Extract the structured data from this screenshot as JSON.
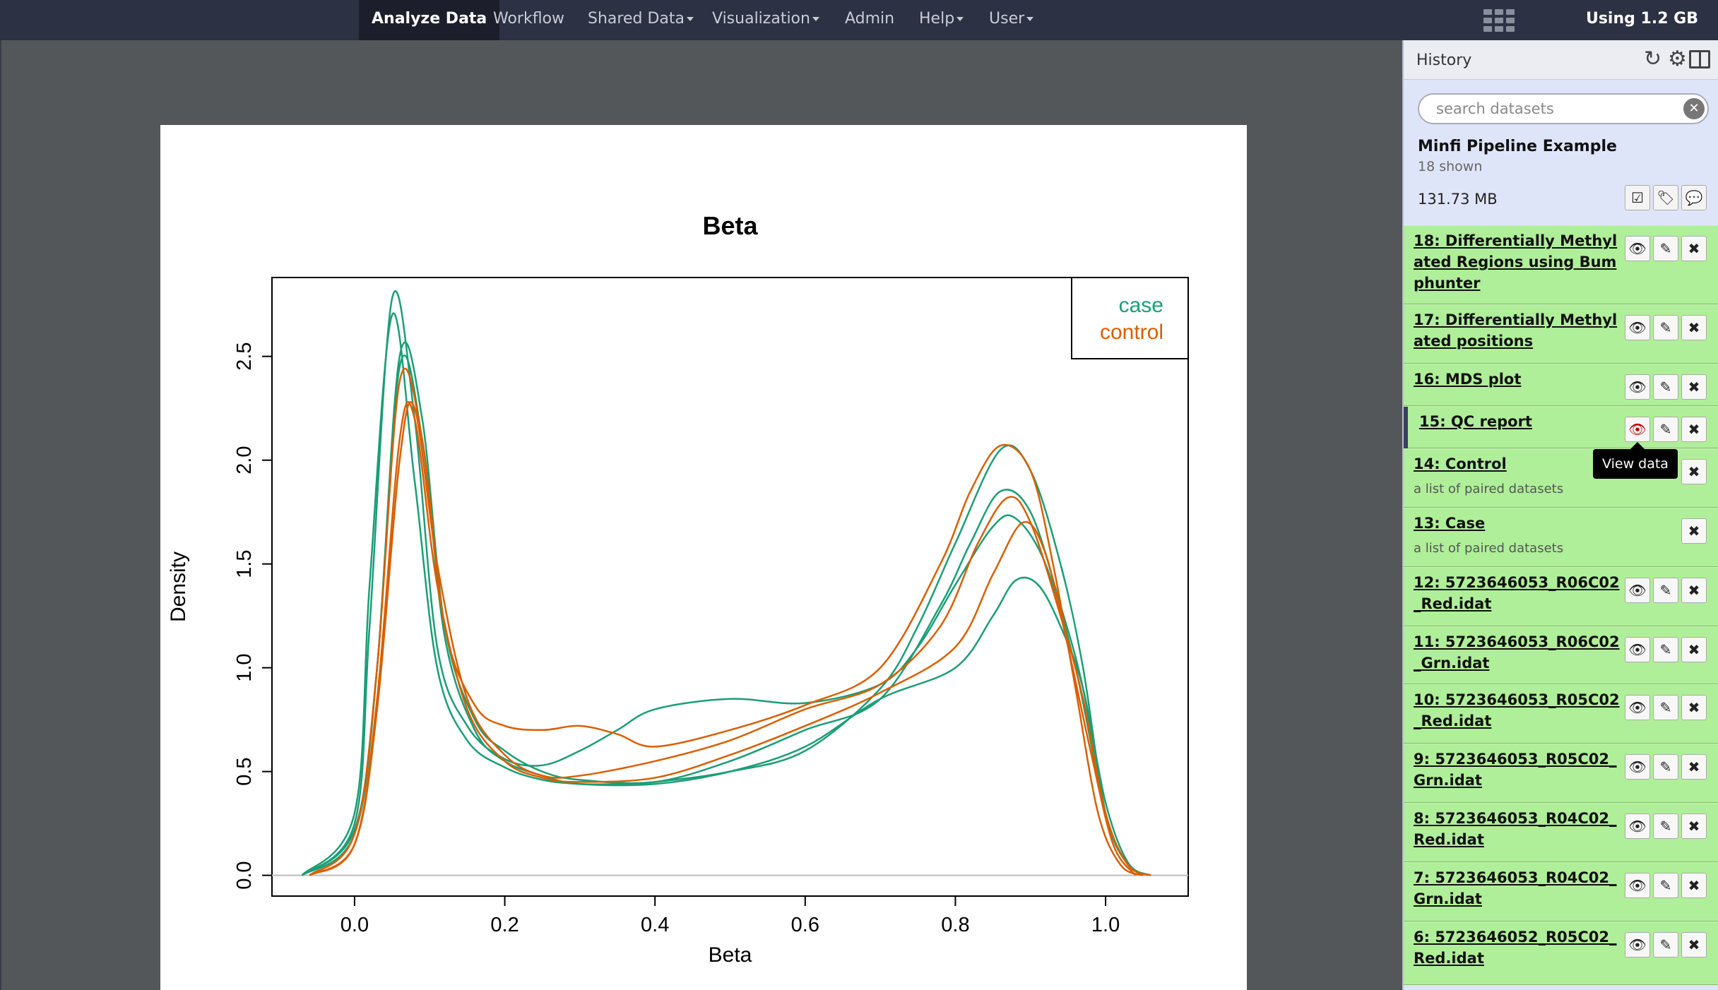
{
  "nav": {
    "items": [
      {
        "label": "Analyze Data",
        "active": true,
        "dropdown": false
      },
      {
        "label": "Workflow",
        "active": false,
        "dropdown": false
      },
      {
        "label": "Shared Data",
        "active": false,
        "dropdown": true
      },
      {
        "label": "Visualization",
        "active": false,
        "dropdown": true
      },
      {
        "label": "Admin",
        "active": false,
        "dropdown": false
      },
      {
        "label": "Help",
        "active": false,
        "dropdown": true
      },
      {
        "label": "User",
        "active": false,
        "dropdown": true
      }
    ],
    "grid_icon": "grid-icon",
    "quota": "Using 1.2 GB"
  },
  "chart_data": {
    "type": "line",
    "title": "Beta",
    "xlabel": "Beta",
    "ylabel": "Density",
    "xlim": [
      -0.11,
      1.11
    ],
    "ylim": [
      -0.1,
      2.88
    ],
    "xticks": [
      "0.0",
      "0.2",
      "0.4",
      "0.6",
      "0.8",
      "1.0"
    ],
    "yticks": [
      "0.0",
      "0.5",
      "1.0",
      "1.5",
      "2.0",
      "2.5"
    ],
    "legend": {
      "position": "top-right",
      "entries": [
        {
          "label": "case",
          "color": "#1b9e77"
        },
        {
          "label": "control",
          "color": "#d95f02"
        }
      ]
    },
    "series": [
      {
        "group": "case",
        "x": [
          -0.07,
          0.0,
          0.02,
          0.05,
          0.08,
          0.11,
          0.15,
          0.2,
          0.25,
          0.3,
          0.35,
          0.4,
          0.5,
          0.6,
          0.7,
          0.75,
          0.8,
          0.85,
          0.88,
          0.92,
          0.96,
          1.0,
          1.03,
          1.06
        ],
        "y": [
          0.0,
          0.25,
          1.2,
          2.78,
          2.2,
          1.1,
          0.72,
          0.56,
          0.53,
          0.6,
          0.7,
          0.8,
          0.85,
          0.83,
          0.92,
          1.1,
          1.4,
          1.68,
          1.72,
          1.5,
          1.0,
          0.3,
          0.05,
          0.0
        ]
      },
      {
        "group": "case",
        "x": [
          -0.07,
          0.0,
          0.02,
          0.05,
          0.08,
          0.11,
          0.15,
          0.2,
          0.25,
          0.3,
          0.35,
          0.4,
          0.5,
          0.6,
          0.7,
          0.75,
          0.8,
          0.86,
          0.9,
          0.94,
          0.97,
          1.0,
          1.03,
          1.06
        ],
        "y": [
          0.0,
          0.3,
          1.4,
          2.7,
          1.9,
          1.0,
          0.65,
          0.52,
          0.46,
          0.44,
          0.44,
          0.45,
          0.5,
          0.6,
          0.9,
          1.2,
          1.6,
          2.05,
          1.95,
          1.5,
          1.0,
          0.3,
          0.05,
          0.0
        ]
      },
      {
        "group": "case",
        "x": [
          -0.07,
          0.0,
          0.03,
          0.06,
          0.09,
          0.12,
          0.16,
          0.2,
          0.25,
          0.3,
          0.4,
          0.5,
          0.6,
          0.7,
          0.78,
          0.82,
          0.86,
          0.9,
          0.94,
          0.97,
          1.0,
          1.03,
          1.06
        ],
        "y": [
          0.0,
          0.2,
          1.0,
          2.5,
          2.2,
          1.2,
          0.75,
          0.6,
          0.5,
          0.46,
          0.45,
          0.55,
          0.7,
          0.85,
          1.3,
          1.6,
          1.85,
          1.75,
          1.3,
          0.9,
          0.3,
          0.05,
          0.0
        ]
      },
      {
        "group": "case",
        "x": [
          -0.07,
          0.0,
          0.03,
          0.06,
          0.09,
          0.12,
          0.16,
          0.2,
          0.25,
          0.3,
          0.4,
          0.5,
          0.6,
          0.7,
          0.8,
          0.85,
          0.88,
          0.91,
          0.94,
          0.97,
          1.0,
          1.03,
          1.06
        ],
        "y": [
          0.0,
          0.22,
          1.0,
          2.45,
          2.1,
          1.15,
          0.7,
          0.55,
          0.48,
          0.44,
          0.44,
          0.5,
          0.62,
          0.85,
          1.0,
          1.25,
          1.42,
          1.4,
          1.2,
          0.9,
          0.35,
          0.06,
          0.0
        ]
      },
      {
        "group": "control",
        "x": [
          -0.06,
          0.0,
          0.03,
          0.06,
          0.09,
          0.12,
          0.16,
          0.2,
          0.25,
          0.3,
          0.35,
          0.4,
          0.5,
          0.6,
          0.7,
          0.78,
          0.82,
          0.86,
          0.9,
          0.93,
          0.96,
          0.99,
          1.02,
          1.05
        ],
        "y": [
          0.0,
          0.2,
          1.0,
          2.38,
          2.1,
          1.2,
          0.82,
          0.72,
          0.7,
          0.72,
          0.68,
          0.62,
          0.7,
          0.82,
          1.0,
          1.5,
          1.85,
          2.07,
          1.95,
          1.5,
          0.9,
          0.3,
          0.05,
          0.0
        ]
      },
      {
        "group": "control",
        "x": [
          -0.06,
          0.0,
          0.03,
          0.06,
          0.08,
          0.11,
          0.15,
          0.2,
          0.25,
          0.3,
          0.4,
          0.5,
          0.6,
          0.7,
          0.78,
          0.83,
          0.87,
          0.9,
          0.94,
          0.97,
          1.0,
          1.03,
          1.06
        ],
        "y": [
          0.0,
          0.15,
          0.8,
          2.0,
          2.25,
          1.5,
          0.85,
          0.58,
          0.48,
          0.48,
          0.55,
          0.65,
          0.8,
          0.92,
          1.2,
          1.6,
          1.82,
          1.7,
          1.25,
          0.85,
          0.3,
          0.05,
          0.0
        ]
      },
      {
        "group": "control",
        "x": [
          -0.06,
          0.0,
          0.03,
          0.06,
          0.08,
          0.11,
          0.15,
          0.2,
          0.25,
          0.3,
          0.4,
          0.5,
          0.6,
          0.7,
          0.8,
          0.85,
          0.89,
          0.92,
          0.95,
          0.98,
          1.01,
          1.04
        ],
        "y": [
          0.0,
          0.15,
          0.85,
          2.1,
          2.2,
          1.4,
          0.8,
          0.55,
          0.47,
          0.45,
          0.47,
          0.58,
          0.72,
          0.88,
          1.1,
          1.45,
          1.7,
          1.55,
          1.1,
          0.6,
          0.15,
          0.0
        ]
      }
    ]
  },
  "history": {
    "title": "History",
    "icons": [
      "refresh-icon",
      "gear-icon",
      "columns-icon"
    ],
    "search_placeholder": "search datasets",
    "name": "Minfi Pipeline Example",
    "shown": "18 shown",
    "size": "131.73 MB",
    "action_icons": [
      "check-square-icon",
      "tags-icon",
      "comment-icon"
    ],
    "datasets": [
      {
        "title": "18: Differentially Methylated Regions using Bumphunter",
        "eye": true,
        "edit": true
      },
      {
        "title": "17: Differentially Methylated positions",
        "eye": true,
        "edit": true
      },
      {
        "title": "16: MDS plot",
        "eye": true,
        "edit": true
      },
      {
        "title": "15: QC report",
        "eye": true,
        "edit": true,
        "selected": true
      },
      {
        "title": "14: Control",
        "sub": "a list of paired datasets",
        "eye": false,
        "edit": false
      },
      {
        "title": "13: Case",
        "sub": "a list of paired datasets",
        "eye": false,
        "edit": false
      },
      {
        "title": "12: 5723646053_R06C02_Red.idat",
        "eye": true,
        "edit": true
      },
      {
        "title": "11: 5723646053_R06C02_Grn.idat",
        "eye": true,
        "edit": true
      },
      {
        "title": "10: 5723646053_R05C02_Red.idat",
        "eye": true,
        "edit": true
      },
      {
        "title": "9: 5723646053_R05C02_Grn.idat",
        "eye": true,
        "edit": true
      },
      {
        "title": "8: 5723646053_R04C02_Red.idat",
        "eye": true,
        "edit": true
      },
      {
        "title": "7: 5723646053_R04C02_Grn.idat",
        "eye": true,
        "edit": true
      },
      {
        "title": "6: 5723646052_R05C02_Red.idat",
        "eye": true,
        "edit": true
      }
    ],
    "tooltip": "View data"
  }
}
